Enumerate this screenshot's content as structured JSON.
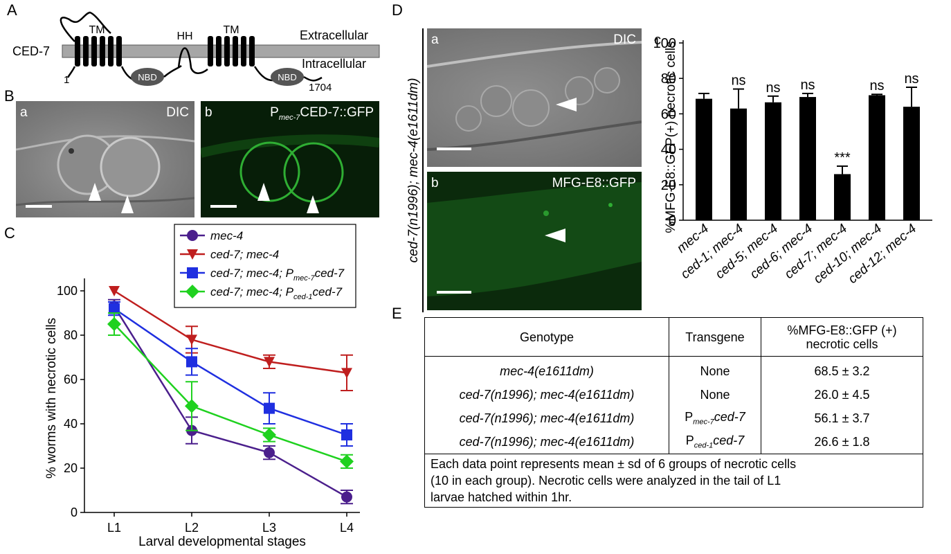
{
  "panel_a": {
    "letter": "A",
    "protein": "CED-7",
    "tm1": "TM",
    "hh": "HH",
    "tm2": "TM",
    "extracellular": "Extracellular",
    "intracellular": "Intracellular",
    "nbd1": "NBD",
    "nbd2": "NBD",
    "start": "1",
    "end": "1704"
  },
  "panel_b": {
    "letter": "B",
    "a_label": "a",
    "a_title": "DIC",
    "b_label": "b",
    "b_title_prefix": "P",
    "b_title_sub": "mec-7",
    "b_title_suffix": "CED-7::GFP"
  },
  "panel_d": {
    "letter": "D",
    "side_label": "ced-7(n1996); mec-4(e1611dm)",
    "a_label": "a",
    "a_title": "DIC",
    "b_label": "b",
    "b_title": "MFG-E8::GFP"
  },
  "panel_e": {
    "letter": "E",
    "headers": [
      "Genotype",
      "Transgene",
      "%MFG-E8::GFP (+)",
      "necrotic cells"
    ],
    "rows": [
      {
        "genotype": "mec-4(e1611dm)",
        "transgene": "None",
        "value": "68.5 ± 3.2"
      },
      {
        "genotype": "ced-7(n1996); mec-4(e1611dm)",
        "transgene": "None",
        "value": "26.0 ± 4.5"
      },
      {
        "genotype": "ced-7(n1996); mec-4(e1611dm)",
        "transgene_p": "P",
        "transgene_sub": "mec-7",
        "transgene_gene": "ced-7",
        "value": "56.1 ± 3.7"
      },
      {
        "genotype": "ced-7(n1996); mec-4(e1611dm)",
        "transgene_p": "P",
        "transgene_sub": "ced-1",
        "transgene_gene": "ced-7",
        "value": "26.6 ± 1.8"
      }
    ],
    "note_lines": [
      "Each data point represents mean ± sd of 6 groups of necrotic cells",
      "(10 in each group). Necrotic cells were analyzed in the tail of L1",
      "larvae hatched within 1hr."
    ]
  },
  "chart_data": [
    {
      "panel": "C",
      "type": "line",
      "letter": "C",
      "x": [
        "L1",
        "L2",
        "L3",
        "L4"
      ],
      "xlabel": "Larval developmental stages",
      "ylabel": "% worms with necrotic cells",
      "ylim": [
        0,
        100
      ],
      "yticks": [
        "0",
        "20",
        "40",
        "60",
        "80",
        "100"
      ],
      "legend_placement": "top-right",
      "series": [
        {
          "name": "mec-4",
          "color": "#4B1F8C",
          "marker": "circle",
          "values": [
            93,
            37,
            27,
            7
          ],
          "err": [
            3,
            6,
            3,
            3
          ]
        },
        {
          "name": "ced-7; mec-4",
          "color": "#BF1E1E",
          "marker": "triangle-down",
          "values": [
            100,
            78,
            68,
            63
          ],
          "err": [
            0,
            6,
            3,
            8
          ]
        },
        {
          "name_prefix": "ced-7; mec-4; P",
          "name_sub": "mec-7",
          "name_suffix": "ced-7",
          "color": "#1F2FE0",
          "marker": "square",
          "values": [
            92,
            68,
            47,
            35
          ],
          "err": [
            3,
            6,
            7,
            5
          ]
        },
        {
          "name_prefix": "ced-7; mec-4; P",
          "name_sub": "ced-1",
          "name_suffix": "ced-7",
          "color": "#1FD11F",
          "marker": "diamond",
          "values": [
            85,
            48,
            35,
            23
          ],
          "err": [
            5,
            11,
            3,
            3
          ]
        }
      ]
    },
    {
      "panel": "D-c",
      "type": "bar",
      "letter": "c",
      "categories": [
        "mec-4",
        "ced-1; mec-4",
        "ced-5; mec-4",
        "ced-6; mec-4",
        "ced-7; mec-4",
        "ced-10; mec-4",
        "ced-12; mec-4"
      ],
      "values": [
        68.5,
        63,
        66.5,
        69.5,
        26,
        70.5,
        64
      ],
      "err": [
        3,
        11,
        3.5,
        2,
        4.5,
        0.5,
        11
      ],
      "annotations": [
        "",
        "ns",
        "ns",
        "ns",
        "***",
        "ns",
        "ns"
      ],
      "ylabel": "%MFG-E8::GFP(+) necrotic cells",
      "ylim": [
        0,
        100
      ],
      "yticks": [
        "0",
        "20",
        "40",
        "60",
        "80",
        "100"
      ],
      "color": "#000000"
    }
  ]
}
